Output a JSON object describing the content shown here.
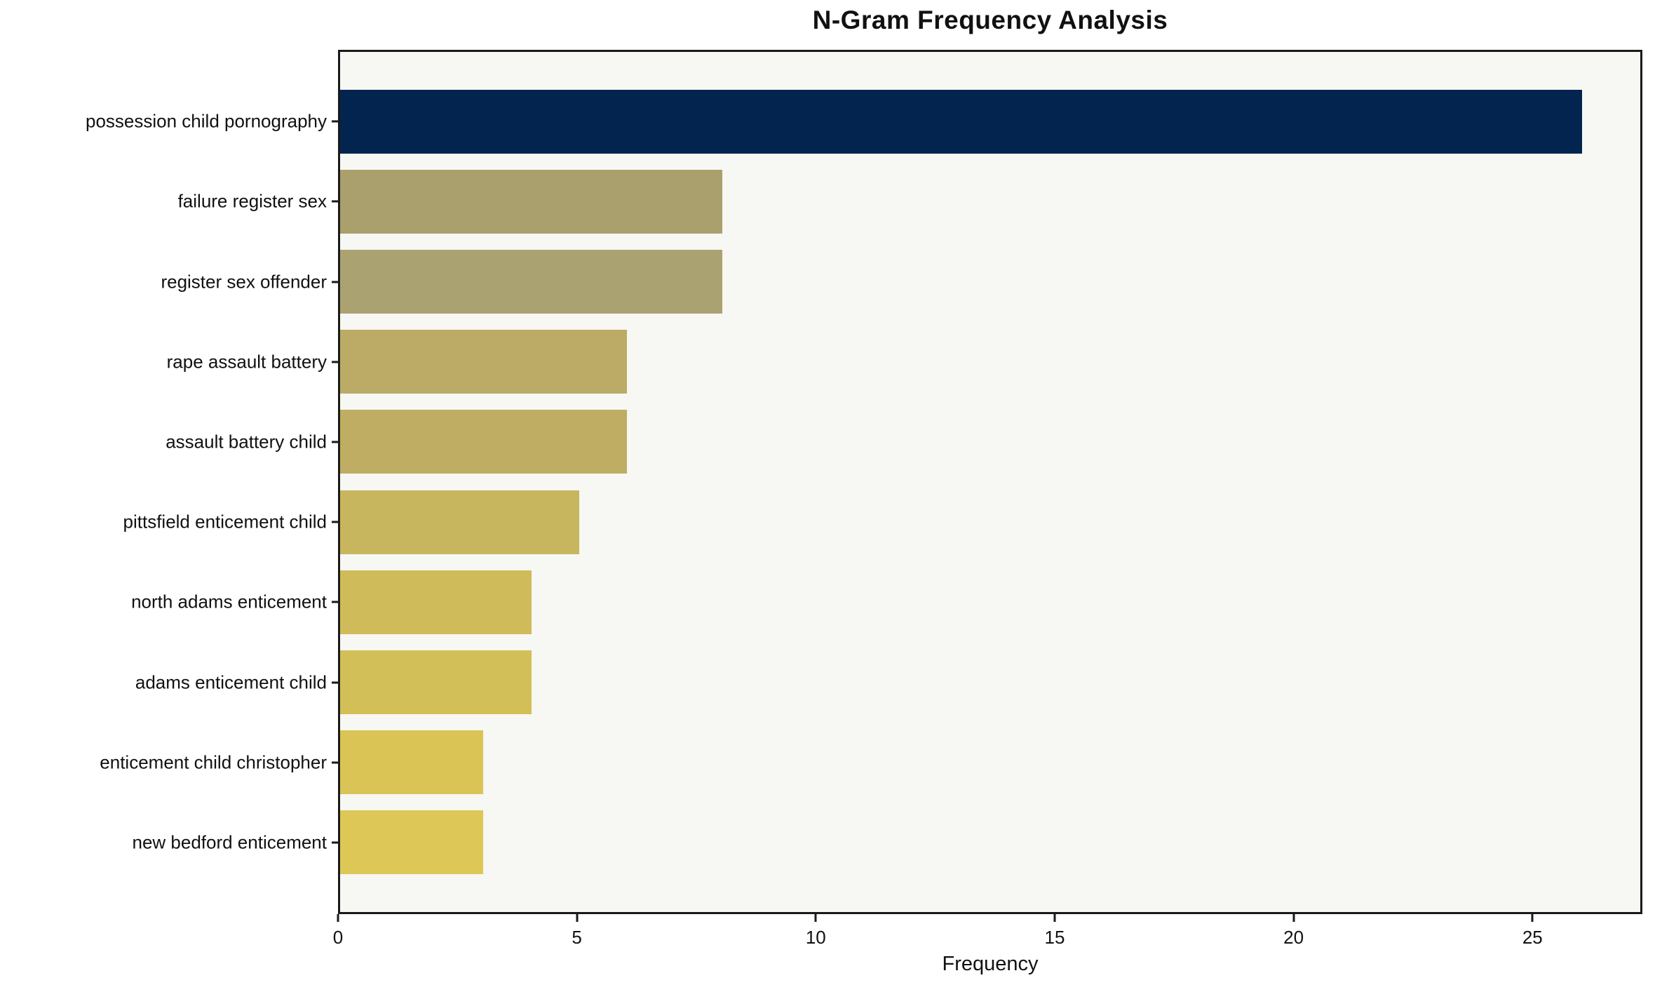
{
  "chart_data": {
    "type": "bar",
    "orientation": "horizontal",
    "title": "N-Gram Frequency Analysis",
    "xlabel": "Frequency",
    "ylabel": "",
    "categories": [
      "possession child pornography",
      "failure register sex",
      "register sex offender",
      "rape assault battery",
      "assault battery child",
      "pittsfield enticement child",
      "north adams enticement",
      "adams enticement child",
      "enticement child christopher",
      "new bedford enticement"
    ],
    "values": [
      26,
      8,
      8,
      6,
      6,
      5,
      4,
      4,
      3,
      3
    ],
    "bar_colors": [
      "#02244e",
      "#a9a06e",
      "#aba272",
      "#bcab66",
      "#bead63",
      "#c8b65f",
      "#d0bb5a",
      "#d3bf58",
      "#dac455",
      "#ddc756"
    ],
    "xticks": [
      0,
      5,
      10,
      15,
      20,
      25
    ],
    "xlim": [
      0,
      27.3
    ],
    "grid": false,
    "legend": "none",
    "plot_background": "#f7f7f4",
    "figure_background": "#ffffff",
    "spine_color": "#1a1a1a"
  }
}
